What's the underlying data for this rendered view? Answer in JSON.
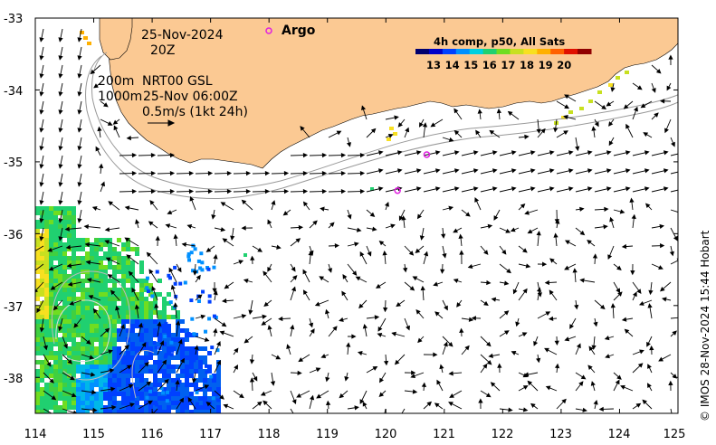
{
  "map": {
    "region": "Western Australia south coast / Great Australian Bight",
    "lon_range": [
      114,
      125
    ],
    "lat_range": [
      -38.5,
      -33
    ],
    "x_ticks": [
      "114",
      "115",
      "116",
      "117",
      "118",
      "119",
      "120",
      "121",
      "122",
      "123",
      "124",
      "125"
    ],
    "y_ticks": [
      "-33",
      "-34",
      "-35",
      "-36",
      "-37",
      "-38"
    ],
    "land_color": "#fbc993",
    "date_label": "25-Nov-2024",
    "time_label": "20Z",
    "argo_label": "Argo",
    "argo_color": "#e020e0",
    "contour_label_200": "200m",
    "contour_label_1000": "1000m",
    "product_label": "NRT00 GSL",
    "product_time": "25-Nov 06:00Z",
    "scale_label": "0.5m/s (1kt 24h)",
    "argo_floats": [
      {
        "lon": 120.7,
        "lat": -34.9
      },
      {
        "lon": 120.2,
        "lat": -35.4
      }
    ]
  },
  "colorbar": {
    "title": "4h comp, p50, All Sats",
    "labels": [
      "13",
      "14",
      "15",
      "16",
      "17",
      "18",
      "19",
      "20"
    ],
    "colors": [
      "#00006e",
      "#0000c8",
      "#0040ff",
      "#0090ff",
      "#00d0e0",
      "#20d070",
      "#70dd20",
      "#c8e020",
      "#f8e020",
      "#ffb000",
      "#ff6000",
      "#e01000",
      "#900000"
    ]
  },
  "credit": "© IMOS 28-Nov-2024 15:44 Hobart"
}
